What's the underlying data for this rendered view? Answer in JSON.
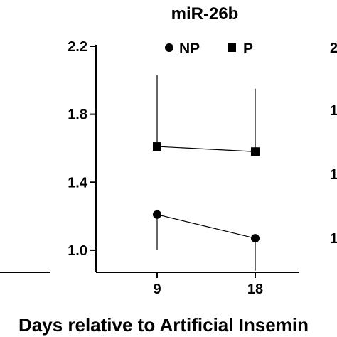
{
  "chart_data": {
    "type": "line",
    "title": "miR-26b",
    "xlabel": "Days relative to Artificial Insemin",
    "ylabel": "",
    "x": [
      "9",
      "18"
    ],
    "ylim": [
      0.87,
      2.2
    ],
    "y_ticks": [
      "1.0",
      "1.4",
      "1.8",
      "2.2"
    ],
    "legend_position": "top",
    "series": [
      {
        "name": "NP",
        "marker": "circle",
        "values": [
          1.21,
          1.07
        ],
        "error_low": [
          0.21,
          0.19
        ],
        "error_high": [
          0.0,
          0.0
        ]
      },
      {
        "name": "P",
        "marker": "square",
        "values": [
          1.61,
          1.58
        ],
        "error_low": [
          0.0,
          0.0
        ],
        "error_high": [
          0.42,
          0.37
        ]
      }
    ],
    "cropped_right_ticks": [
      "2",
      "1",
      "1",
      "1"
    ]
  }
}
